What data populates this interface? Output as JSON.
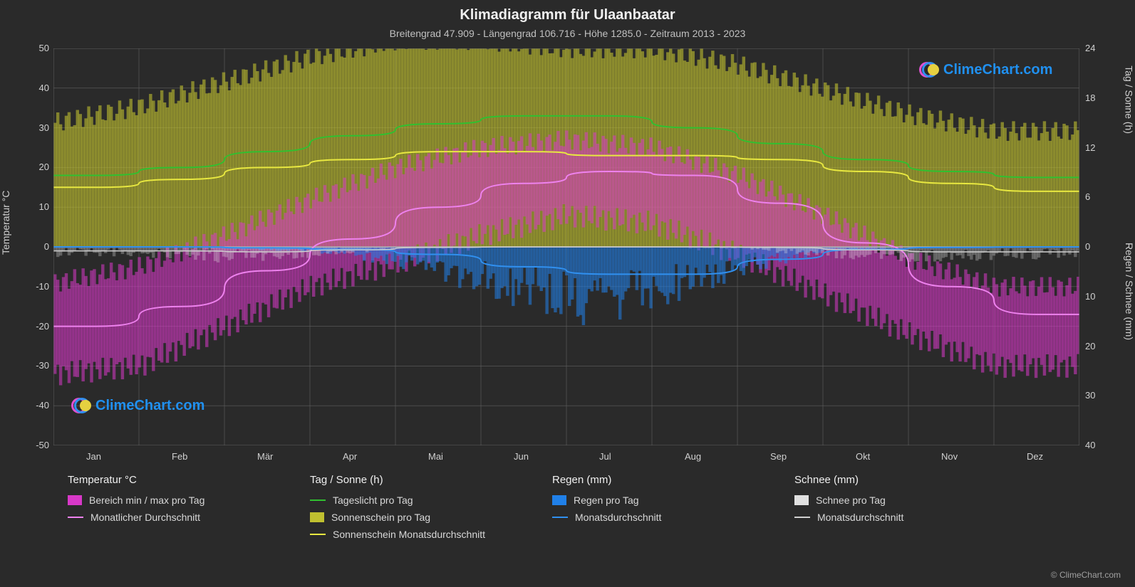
{
  "title": "Klimadiagramm für Ulaanbaatar",
  "subtitle": "Breitengrad 47.909 - Längengrad 106.716 - Höhe 1285.0 - Zeitraum 2013 - 2023",
  "watermark_text": "ClimeChart.com",
  "watermark_color": "#2090f0",
  "copyright": "© ClimeChart.com",
  "chart": {
    "background": "#2a2a2a",
    "plot_bg": "#2a2a2a",
    "grid_color": "#606060",
    "zero_line_color": "#b0b0b0",
    "months": [
      "Jan",
      "Feb",
      "Mär",
      "Apr",
      "Mai",
      "Jun",
      "Jul",
      "Aug",
      "Sep",
      "Okt",
      "Nov",
      "Dez"
    ],
    "y_left": {
      "label": "Temperatur °C",
      "min": -50,
      "max": 50,
      "ticks": [
        -50,
        -40,
        -30,
        -20,
        -10,
        0,
        10,
        20,
        30,
        40,
        50
      ]
    },
    "y_right_top": {
      "label": "Tag / Sonne (h)",
      "min": 0,
      "max": 24,
      "ticks": [
        0,
        6,
        12,
        18,
        24
      ]
    },
    "y_right_bot": {
      "label": "Regen / Schnee (mm)",
      "min": 0,
      "max": 40,
      "ticks": [
        0,
        10,
        20,
        30,
        40
      ]
    },
    "series": {
      "temp_range": {
        "color": "#d838c8",
        "opacity": 0.55,
        "min": [
          -32,
          -30,
          -20,
          -10,
          -4,
          3,
          8,
          6,
          -2,
          -12,
          -22,
          -30
        ],
        "max": [
          -9,
          -5,
          3,
          12,
          20,
          25,
          27,
          25,
          18,
          8,
          -3,
          -10
        ]
      },
      "temp_avg": {
        "color": "#ee82ee",
        "width": 2,
        "data": [
          -20,
          -15,
          -6,
          2,
          10,
          16,
          19,
          18,
          11,
          1,
          -10,
          -17
        ]
      },
      "daylight": {
        "color": "#30c030",
        "width": 2,
        "data": [
          18,
          20,
          24,
          28,
          31,
          33,
          33,
          30,
          26,
          22,
          19,
          17.5
        ]
      },
      "sunshine_bars": {
        "color": "#c0c030",
        "opacity": 0.6,
        "data": [
          15,
          17,
          20,
          23,
          25,
          25,
          24,
          24,
          22,
          19,
          16,
          14
        ]
      },
      "sunshine_avg": {
        "color": "#e8e840",
        "width": 2,
        "data": [
          15,
          17,
          20,
          22,
          24,
          24,
          23,
          23,
          22,
          19,
          16,
          14
        ]
      },
      "rain_bars": {
        "color": "#2080e8",
        "opacity": 0.55,
        "data": [
          0,
          0,
          0.2,
          0.5,
          2,
          5,
          8,
          7,
          3,
          0.5,
          0,
          0
        ]
      },
      "rain_avg": {
        "color": "#3090f0",
        "width": 2,
        "data": [
          0,
          0,
          0.2,
          0.5,
          1.5,
          4,
          5.5,
          5.5,
          2.5,
          0.5,
          0.1,
          0
        ]
      },
      "snow_bars": {
        "color": "#e0e0e0",
        "opacity": 0.3,
        "data": [
          1,
          1,
          1.5,
          1,
          0.2,
          0,
          0,
          0,
          0.2,
          1,
          1.5,
          1.2
        ]
      },
      "snow_avg": {
        "color": "#d0d0d0",
        "width": 1.5,
        "data": [
          0.8,
          0.8,
          1,
          0.6,
          0.1,
          0,
          0,
          0,
          0.1,
          0.6,
          1,
          1
        ]
      }
    }
  },
  "legend": {
    "cols": [
      {
        "header": "Temperatur °C",
        "items": [
          {
            "type": "swatch",
            "color": "#d838c8",
            "label": "Bereich min / max pro Tag"
          },
          {
            "type": "line",
            "color": "#ee82ee",
            "label": "Monatlicher Durchschnitt"
          }
        ]
      },
      {
        "header": "Tag / Sonne (h)",
        "items": [
          {
            "type": "line",
            "color": "#30c030",
            "label": "Tageslicht pro Tag"
          },
          {
            "type": "swatch",
            "color": "#c0c030",
            "label": "Sonnenschein pro Tag"
          },
          {
            "type": "line",
            "color": "#e8e840",
            "label": "Sonnenschein Monatsdurchschnitt"
          }
        ]
      },
      {
        "header": "Regen (mm)",
        "items": [
          {
            "type": "swatch",
            "color": "#2080e8",
            "label": "Regen pro Tag"
          },
          {
            "type": "line",
            "color": "#3090f0",
            "label": "Monatsdurchschnitt"
          }
        ]
      },
      {
        "header": "Schnee (mm)",
        "items": [
          {
            "type": "swatch",
            "color": "#e0e0e0",
            "label": "Schnee pro Tag"
          },
          {
            "type": "line",
            "color": "#d0d0d0",
            "label": "Monatsdurchschnitt"
          }
        ]
      }
    ]
  }
}
